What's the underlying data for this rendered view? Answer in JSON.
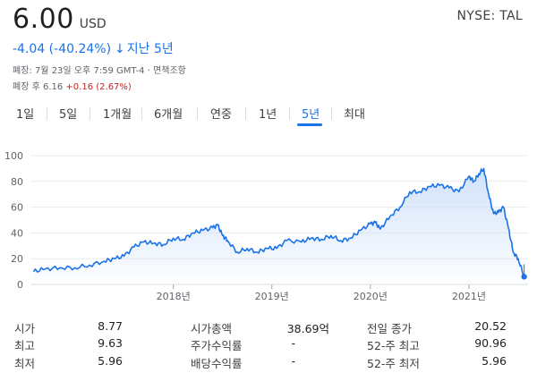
{
  "quote": {
    "price": "6.00",
    "currency": "USD",
    "ticker": "NYSE: TAL",
    "change": "-4.04 (-40.24%)",
    "change_arrow": "↓",
    "period_label": "지난 5년",
    "close_info": "폐장: 7월 23일 오후 7:59 GMT-4 · 면책조항",
    "after_hours_label": "폐장 후",
    "after_hours_price": "6.16",
    "after_hours_change": "+0.16 (2.67%)"
  },
  "tabs": [
    {
      "label": "1일",
      "active": false
    },
    {
      "label": "5일",
      "active": false
    },
    {
      "label": "1개월",
      "active": false
    },
    {
      "label": "6개월",
      "active": false
    },
    {
      "label": "연중",
      "active": false
    },
    {
      "label": "1년",
      "active": false
    },
    {
      "label": "5년",
      "active": true
    },
    {
      "label": "최대",
      "active": false
    }
  ],
  "colors": {
    "line": "#1a73e8",
    "fill_top": "#cfe0f8",
    "grid": "#e8eaed",
    "accent": "#1a73e8",
    "positive": "#c5221f"
  },
  "chart_data": {
    "type": "area",
    "ylim": [
      0,
      100
    ],
    "y_ticks": [
      "0",
      "20",
      "40",
      "60",
      "80",
      "100"
    ],
    "x_ticks": [
      {
        "label": "2018년",
        "t": 2018.0
      },
      {
        "label": "2019년",
        "t": 2019.0
      },
      {
        "label": "2020년",
        "t": 2020.0
      },
      {
        "label": "2021년",
        "t": 2021.0
      }
    ],
    "x_range": [
      2016.55,
      2021.6
    ],
    "grid": true,
    "series": [
      {
        "x": [
          2016.58,
          2016.7,
          2016.85,
          2017.0,
          2017.15,
          2017.3,
          2017.4,
          2017.5,
          2017.6,
          2017.7,
          2017.8,
          2017.9,
          2018.0,
          2018.1,
          2018.2,
          2018.3,
          2018.4,
          2018.45,
          2018.5,
          2018.55,
          2018.65,
          2018.75,
          2018.85,
          2018.95,
          2019.05,
          2019.15,
          2019.3,
          2019.4,
          2019.5,
          2019.6,
          2019.7,
          2019.8,
          2019.9,
          2020.0,
          2020.05,
          2020.1,
          2020.2,
          2020.3,
          2020.4,
          2020.5,
          2020.6,
          2020.7,
          2020.8,
          2020.9,
          2021.0,
          2021.05,
          2021.1,
          2021.15,
          2021.2,
          2021.25,
          2021.3,
          2021.35,
          2021.4,
          2021.45,
          2021.5,
          2021.56
        ],
        "y": [
          10,
          12,
          13,
          13,
          15,
          18,
          20,
          22,
          29,
          33,
          32,
          31,
          36,
          35,
          40,
          42,
          44,
          46,
          38,
          34,
          25,
          28,
          25,
          28,
          28,
          34,
          33,
          36,
          35,
          38,
          34,
          36,
          42,
          47,
          48,
          43,
          53,
          60,
          72,
          72,
          76,
          77,
          75,
          72,
          84,
          80,
          86,
          90,
          70,
          55,
          56,
          60,
          44,
          25,
          20,
          6
        ]
      }
    ]
  },
  "stats": {
    "col1": [
      {
        "label": "시가",
        "value": "8.77"
      },
      {
        "label": "최고",
        "value": "9.63"
      },
      {
        "label": "최저",
        "value": "5.96"
      }
    ],
    "col2": [
      {
        "label": "시가총액",
        "value": "38.69억"
      },
      {
        "label": "주가수익률",
        "value": "-"
      },
      {
        "label": "배당수익률",
        "value": "-"
      }
    ],
    "col3": [
      {
        "label": "전일 종가",
        "value": "20.52"
      },
      {
        "label": "52-주 최고",
        "value": "90.96"
      },
      {
        "label": "52-주 최저",
        "value": "5.96"
      }
    ]
  }
}
